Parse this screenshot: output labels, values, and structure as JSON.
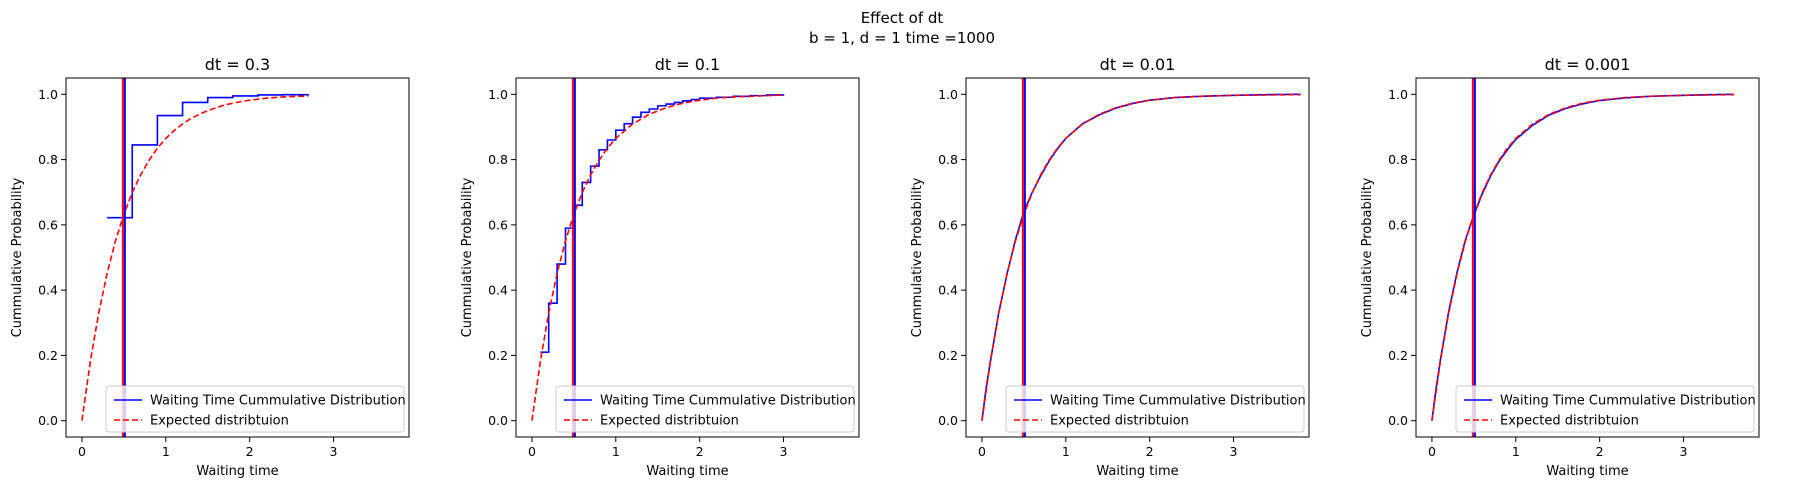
{
  "figure": {
    "title_line1": "Effect of dt",
    "title_line2": "b = 1, d = 1 time =1000"
  },
  "colors": {
    "observed": "#0000ff",
    "expected": "#ff0000",
    "axes": "#000000"
  },
  "chart_data": [
    {
      "type": "line",
      "title": "dt = 0.3",
      "xlabel": "Waiting time",
      "ylabel": "Cummulative Probability",
      "xlim": [
        -0.19,
        3.9
      ],
      "ylim": [
        -0.05,
        1.05
      ],
      "xticks": [
        0,
        1,
        2,
        3
      ],
      "yticks": [
        0.0,
        0.2,
        0.4,
        0.6,
        0.8,
        1.0
      ],
      "vlines": [
        {
          "x": 0.5,
          "colors": [
            "#ff0000",
            "#0000ff"
          ]
        }
      ],
      "legend": {
        "location": "lower right"
      },
      "series": [
        {
          "name": "Waiting Time Cummulative Distribution",
          "style": "solid-step",
          "x": [
            0.3,
            0.6,
            0.9,
            1.2,
            1.5,
            1.8,
            2.1,
            2.4,
            2.7
          ],
          "y": [
            0.622,
            0.845,
            0.935,
            0.975,
            0.99,
            0.995,
            0.998,
            0.999,
            1.0
          ]
        },
        {
          "name": "Expected distribtuion",
          "style": "dashed",
          "x": [
            0.0,
            0.1,
            0.2,
            0.3,
            0.4,
            0.5,
            0.6,
            0.7,
            0.8,
            0.9,
            1.0,
            1.1,
            1.2,
            1.3,
            1.4,
            1.5,
            1.6,
            1.7,
            1.8,
            1.9,
            2.0,
            2.1,
            2.2,
            2.3,
            2.4,
            2.5,
            2.6,
            2.7
          ],
          "y": [
            0.0,
            0.181,
            0.33,
            0.451,
            0.551,
            0.632,
            0.699,
            0.753,
            0.798,
            0.835,
            0.865,
            0.889,
            0.909,
            0.926,
            0.939,
            0.95,
            0.959,
            0.967,
            0.973,
            0.978,
            0.982,
            0.985,
            0.988,
            0.99,
            0.992,
            0.993,
            0.994,
            0.995
          ]
        }
      ]
    },
    {
      "type": "line",
      "title": "dt = 0.1",
      "xlabel": "Waiting time",
      "ylabel": "Cummulative Probability",
      "xlim": [
        -0.19,
        3.9
      ],
      "ylim": [
        -0.05,
        1.05
      ],
      "xticks": [
        0,
        1,
        2,
        3
      ],
      "yticks": [
        0.0,
        0.2,
        0.4,
        0.6,
        0.8,
        1.0
      ],
      "vlines": [
        {
          "x": 0.5,
          "colors": [
            "#ff0000",
            "#0000ff"
          ]
        }
      ],
      "legend": {
        "location": "lower right"
      },
      "series": [
        {
          "name": "Waiting Time Cummulative Distribution",
          "style": "solid-step",
          "x": [
            0.1,
            0.2,
            0.3,
            0.4,
            0.5,
            0.6,
            0.7,
            0.8,
            0.9,
            1.0,
            1.1,
            1.2,
            1.3,
            1.4,
            1.5,
            1.6,
            1.7,
            1.8,
            1.9,
            2.0,
            2.2,
            2.4,
            2.6,
            2.8,
            3.0
          ],
          "y": [
            0.21,
            0.36,
            0.48,
            0.59,
            0.66,
            0.73,
            0.78,
            0.83,
            0.86,
            0.89,
            0.91,
            0.93,
            0.945,
            0.955,
            0.965,
            0.97,
            0.975,
            0.98,
            0.984,
            0.988,
            0.991,
            0.994,
            0.996,
            0.998,
            1.0
          ]
        },
        {
          "name": "Expected distribtuion",
          "style": "dashed",
          "x": [
            0.0,
            0.1,
            0.2,
            0.3,
            0.4,
            0.5,
            0.6,
            0.7,
            0.8,
            0.9,
            1.0,
            1.2,
            1.4,
            1.6,
            1.8,
            2.0,
            2.2,
            2.4,
            2.6,
            2.8,
            3.0
          ],
          "y": [
            0.0,
            0.181,
            0.33,
            0.451,
            0.551,
            0.632,
            0.699,
            0.753,
            0.798,
            0.835,
            0.865,
            0.909,
            0.939,
            0.959,
            0.973,
            0.982,
            0.988,
            0.992,
            0.994,
            0.996,
            0.998
          ]
        }
      ]
    },
    {
      "type": "line",
      "title": "dt = 0.01",
      "xlabel": "Waiting time",
      "ylabel": "Cummulative Probability",
      "xlim": [
        -0.19,
        3.9
      ],
      "ylim": [
        -0.05,
        1.05
      ],
      "xticks": [
        0,
        1,
        2,
        3
      ],
      "yticks": [
        0.0,
        0.2,
        0.4,
        0.6,
        0.8,
        1.0
      ],
      "vlines": [
        {
          "x": 0.5,
          "colors": [
            "#ff0000",
            "#0000ff"
          ]
        }
      ],
      "legend": {
        "location": "lower right"
      },
      "series": [
        {
          "name": "Waiting Time Cummulative Distribution",
          "style": "solid",
          "x": [
            0.0,
            0.05,
            0.1,
            0.2,
            0.3,
            0.4,
            0.5,
            0.6,
            0.7,
            0.8,
            0.9,
            1.0,
            1.2,
            1.4,
            1.6,
            1.8,
            2.0,
            2.3,
            2.6,
            3.0,
            3.4,
            3.8
          ],
          "y": [
            0.0,
            0.1,
            0.18,
            0.33,
            0.45,
            0.555,
            0.64,
            0.7,
            0.75,
            0.795,
            0.833,
            0.865,
            0.91,
            0.937,
            0.958,
            0.972,
            0.982,
            0.99,
            0.994,
            0.997,
            0.999,
            1.0
          ]
        },
        {
          "name": "Expected distribtuion",
          "style": "dashed",
          "x": [
            0.0,
            0.1,
            0.2,
            0.3,
            0.4,
            0.5,
            0.6,
            0.7,
            0.8,
            0.9,
            1.0,
            1.2,
            1.4,
            1.6,
            1.8,
            2.0,
            2.3,
            2.6,
            3.0,
            3.4,
            3.8
          ],
          "y": [
            0.0,
            0.181,
            0.33,
            0.451,
            0.551,
            0.632,
            0.699,
            0.753,
            0.798,
            0.835,
            0.865,
            0.909,
            0.939,
            0.959,
            0.973,
            0.982,
            0.99,
            0.994,
            0.997,
            0.998,
            0.999
          ]
        }
      ]
    },
    {
      "type": "line",
      "title": "dt = 0.001",
      "xlabel": "Waiting time",
      "ylabel": "Cummulative Probability",
      "xlim": [
        -0.19,
        3.9
      ],
      "ylim": [
        -0.05,
        1.05
      ],
      "xticks": [
        0,
        1,
        2,
        3
      ],
      "yticks": [
        0.0,
        0.2,
        0.4,
        0.6,
        0.8,
        1.0
      ],
      "vlines": [
        {
          "x": 0.5,
          "colors": [
            "#ff0000",
            "#0000ff"
          ]
        }
      ],
      "legend": {
        "location": "lower right"
      },
      "series": [
        {
          "name": "Waiting Time Cummulative Distribution",
          "style": "solid",
          "x": [
            0.0,
            0.05,
            0.1,
            0.2,
            0.3,
            0.4,
            0.5,
            0.6,
            0.7,
            0.8,
            0.9,
            1.0,
            1.2,
            1.4,
            1.6,
            1.8,
            2.0,
            2.3,
            2.6,
            3.0,
            3.3,
            3.6
          ],
          "y": [
            0.0,
            0.1,
            0.185,
            0.335,
            0.455,
            0.555,
            0.63,
            0.695,
            0.75,
            0.795,
            0.83,
            0.862,
            0.905,
            0.937,
            0.957,
            0.971,
            0.981,
            0.989,
            0.994,
            0.997,
            0.999,
            1.0
          ]
        },
        {
          "name": "Expected distribtuion",
          "style": "dashed",
          "x": [
            0.0,
            0.1,
            0.2,
            0.3,
            0.4,
            0.5,
            0.6,
            0.7,
            0.8,
            0.9,
            1.0,
            1.2,
            1.4,
            1.6,
            1.8,
            2.0,
            2.3,
            2.6,
            3.0,
            3.3,
            3.6
          ],
          "y": [
            0.0,
            0.181,
            0.33,
            0.451,
            0.551,
            0.632,
            0.699,
            0.753,
            0.798,
            0.835,
            0.865,
            0.909,
            0.939,
            0.959,
            0.973,
            0.982,
            0.99,
            0.994,
            0.997,
            0.998,
            0.999
          ]
        }
      ]
    }
  ]
}
